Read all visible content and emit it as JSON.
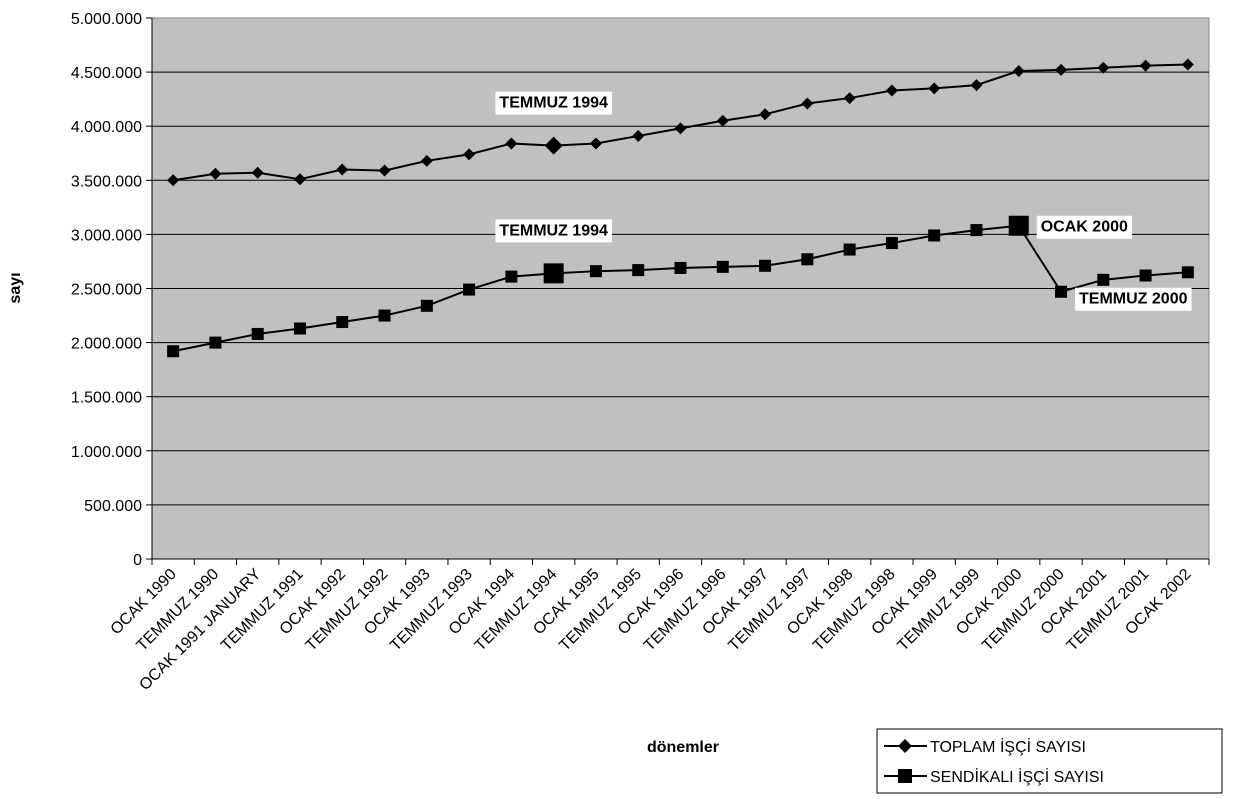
{
  "chart_data": {
    "type": "line",
    "title": "",
    "xlabel": "dönemler",
    "ylabel": "sayı",
    "ylim": [
      0,
      5000000
    ],
    "y_ticks": [
      "0",
      "500.000",
      "1.000.000",
      "1.500.000",
      "2.000.000",
      "2.500.000",
      "3.000.000",
      "3.500.000",
      "4.000.000",
      "4.500.000",
      "5.000.000"
    ],
    "grid": true,
    "legend_position": "bottom-right",
    "categories": [
      "OCAK 1990",
      "TEMMUZ 1990",
      "OCAK 1991 JANUARY",
      "TEMMUZ 1991",
      "OCAK 1992",
      "TEMMUZ 1992",
      "OCAK 1993",
      "TEMMUZ 1993",
      "OCAK 1994",
      "TEMMUZ 1994",
      "OCAK 1995",
      "TEMMUZ 1995",
      "OCAK 1996",
      "TEMMUZ 1996",
      "OCAK 1997",
      "TEMMUZ 1997",
      "OCAK 1998",
      "TEMMUZ 1998",
      "OCAK 1999",
      "TEMMUZ 1999",
      "OCAK 2000",
      "TEMMUZ 2000",
      "OCAK 2001",
      "TEMMUZ 2001",
      "OCAK 2002"
    ],
    "series": [
      {
        "name": "TOPLAM İŞÇİ SAYISI",
        "marker": "diamond",
        "values": [
          3500000,
          3560000,
          3570000,
          3510000,
          3600000,
          3590000,
          3680000,
          3740000,
          3840000,
          3820000,
          3840000,
          3910000,
          3980000,
          4050000,
          4110000,
          4210000,
          4260000,
          4330000,
          4350000,
          4380000,
          4510000,
          4520000,
          4540000,
          4560000,
          4570000
        ]
      },
      {
        "name": "SENDİKALI İŞÇİ SAYISI",
        "marker": "square",
        "values": [
          1920000,
          2000000,
          2080000,
          2130000,
          2190000,
          2250000,
          2340000,
          2490000,
          2610000,
          2640000,
          2660000,
          2670000,
          2690000,
          2700000,
          2710000,
          2770000,
          2860000,
          2920000,
          2990000,
          3040000,
          3080000,
          2470000,
          2580000,
          2620000,
          2650000
        ]
      }
    ],
    "annotations": [
      {
        "text": "TEMMUZ 1994",
        "series": 0,
        "index": 9
      },
      {
        "text": "TEMMUZ 1994",
        "series": 1,
        "index": 9
      },
      {
        "text": "OCAK 2000",
        "series": 1,
        "index": 20
      },
      {
        "text": "TEMMUZ 2000",
        "series": 1,
        "index": 21
      }
    ],
    "colors": {
      "plot_bg": "#c0c0c0",
      "line": "#000000",
      "grid": "#000000"
    }
  }
}
